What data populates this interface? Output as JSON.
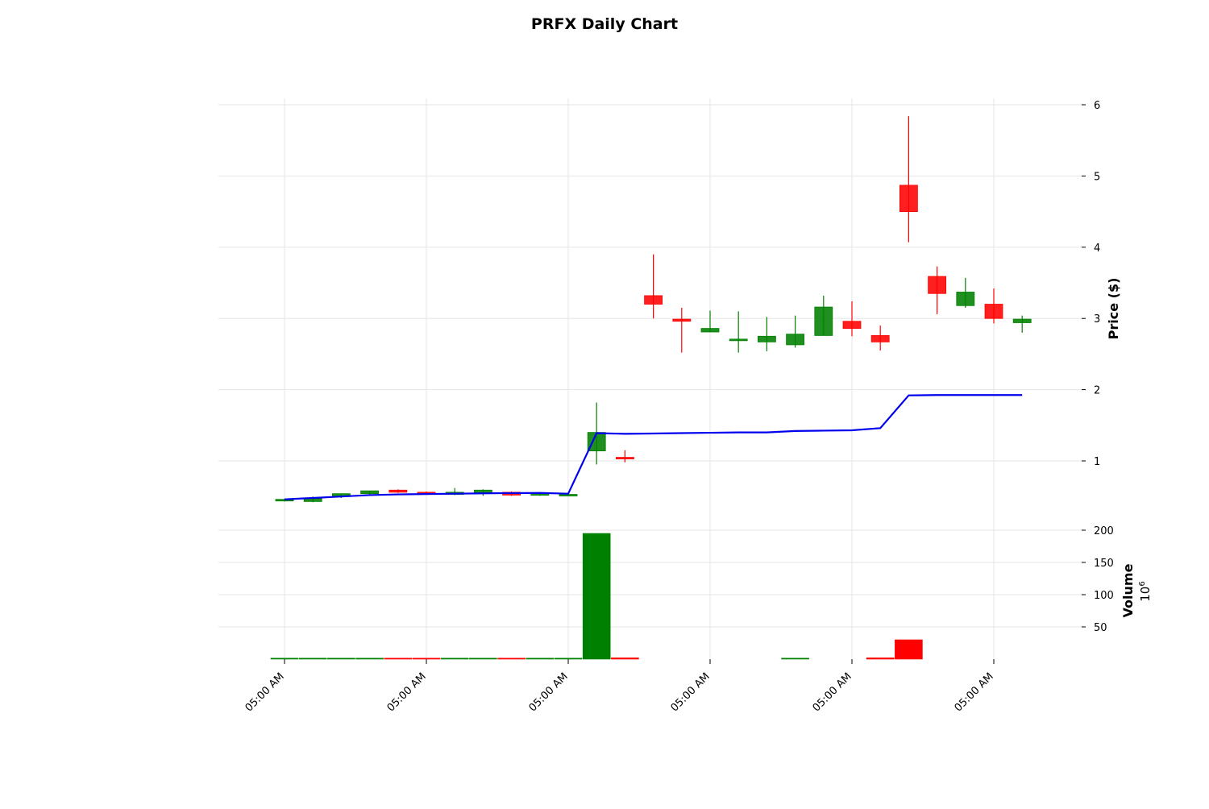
{
  "chart_data": {
    "type": "candlestick",
    "title": "PRFX Daily Chart",
    "price_panel": {
      "ylabel": "Price ($)",
      "ylim": [
        0.4,
        6.1
      ],
      "yticks": [
        1,
        2,
        3,
        4,
        5,
        6
      ],
      "candles": [
        {
          "open": 0.44,
          "high": 0.47,
          "low": 0.43,
          "close": 0.46
        },
        {
          "open": 0.43,
          "high": 0.5,
          "low": 0.42,
          "close": 0.47
        },
        {
          "open": 0.5,
          "high": 0.53,
          "low": 0.48,
          "close": 0.54
        },
        {
          "open": 0.54,
          "high": 0.58,
          "low": 0.52,
          "close": 0.58
        },
        {
          "open": 0.59,
          "high": 0.6,
          "low": 0.55,
          "close": 0.56
        },
        {
          "open": 0.56,
          "high": 0.57,
          "low": 0.53,
          "close": 0.55
        },
        {
          "open": 0.53,
          "high": 0.62,
          "low": 0.52,
          "close": 0.56
        },
        {
          "open": 0.55,
          "high": 0.6,
          "low": 0.51,
          "close": 0.59
        },
        {
          "open": 0.56,
          "high": 0.57,
          "low": 0.51,
          "close": 0.52
        },
        {
          "open": 0.53,
          "high": 0.55,
          "low": 0.51,
          "close": 0.54
        },
        {
          "open": 0.53,
          "high": 0.54,
          "low": 0.52,
          "close": 0.53
        },
        {
          "open": 1.14,
          "high": 1.82,
          "low": 0.95,
          "close": 1.4
        },
        {
          "open": 1.05,
          "high": 1.15,
          "low": 0.98,
          "close": 1.03
        },
        {
          "open": 3.32,
          "high": 3.9,
          "low": 3.0,
          "close": 3.2
        },
        {
          "open": 2.99,
          "high": 3.15,
          "low": 2.52,
          "close": 2.96
        },
        {
          "open": 2.81,
          "high": 3.11,
          "low": 2.81,
          "close": 2.86
        },
        {
          "open": 2.69,
          "high": 3.1,
          "low": 2.52,
          "close": 2.71
        },
        {
          "open": 2.67,
          "high": 3.02,
          "low": 2.54,
          "close": 2.75
        },
        {
          "open": 2.63,
          "high": 3.04,
          "low": 2.59,
          "close": 2.78
        },
        {
          "open": 2.76,
          "high": 3.32,
          "low": 2.76,
          "close": 3.16
        },
        {
          "open": 2.96,
          "high": 3.24,
          "low": 2.75,
          "close": 2.86
        },
        {
          "open": 2.76,
          "high": 2.9,
          "low": 2.55,
          "close": 2.67
        },
        {
          "open": 4.87,
          "high": 5.84,
          "low": 4.07,
          "close": 4.5
        },
        {
          "open": 3.59,
          "high": 3.73,
          "low": 3.06,
          "close": 3.35
        },
        {
          "open": 3.18,
          "high": 3.57,
          "low": 3.15,
          "close": 3.37
        },
        {
          "open": 3.2,
          "high": 3.42,
          "low": 2.93,
          "close": 3.0
        },
        {
          "open": 2.94,
          "high": 3.04,
          "low": 2.8,
          "close": 2.99
        }
      ],
      "overlay_line": {
        "color": "#0000ee",
        "values": [
          0.46,
          0.48,
          0.5,
          0.52,
          0.53,
          0.535,
          0.54,
          0.545,
          0.548,
          0.55,
          0.54,
          1.39,
          1.38,
          1.385,
          1.39,
          1.395,
          1.4,
          1.4,
          1.42,
          1.425,
          1.43,
          1.46,
          1.92,
          1.925,
          1.925,
          1.925,
          1.925
        ]
      }
    },
    "volume_panel": {
      "ylabel": "Volume",
      "scale_label_base": "10",
      "scale_label_exp": "6",
      "ylim": [
        0,
        200
      ],
      "yticks": [
        50,
        100,
        150,
        200
      ],
      "values": [
        0.05,
        0.05,
        0.08,
        0.1,
        0.05,
        0.05,
        0.1,
        0.1,
        0.05,
        0.05,
        0.05,
        195,
        2,
        0,
        0,
        0,
        0,
        0,
        1.0,
        0,
        0,
        2.0,
        30,
        0,
        0,
        0,
        0
      ]
    },
    "x_axis": {
      "tick_labels": [
        "05:00 AM",
        "05:00 AM",
        "05:00 AM",
        "05:00 AM",
        "05:00 AM",
        "05:00 AM"
      ]
    },
    "colors": {
      "up": "#008000",
      "down": "#ff0000",
      "grid": "#e6e6e6",
      "line": "#0000ee"
    }
  }
}
